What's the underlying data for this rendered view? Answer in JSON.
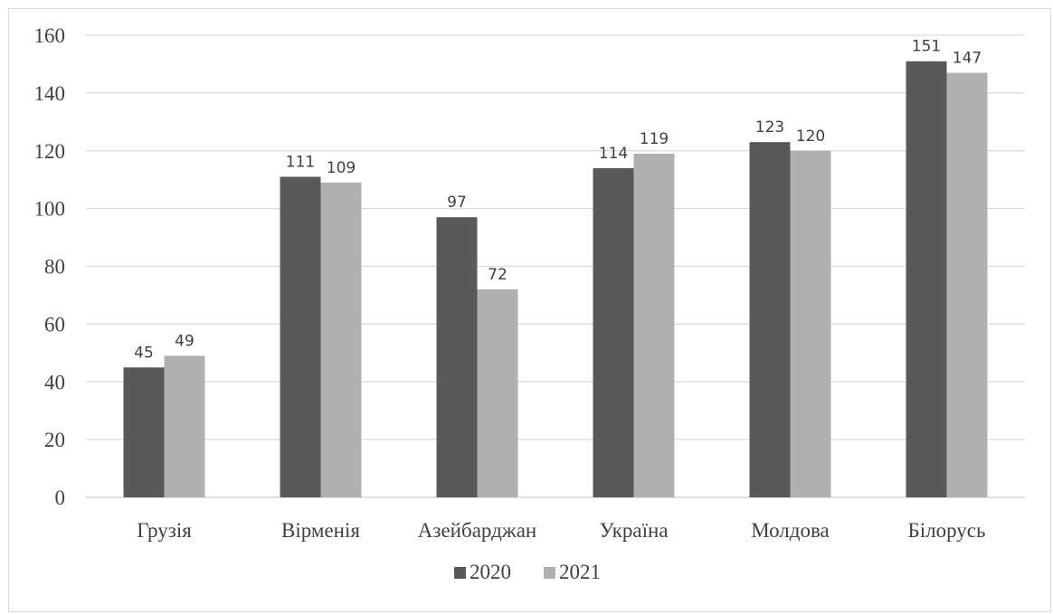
{
  "chart_data": {
    "type": "bar",
    "categories": [
      "Грузія",
      "Вірменія",
      "Азейбарджан",
      "Україна",
      "Молдова",
      "Білорусь"
    ],
    "series": [
      {
        "name": "2020",
        "values": [
          45,
          111,
          97,
          114,
          123,
          151
        ],
        "color": "#595959"
      },
      {
        "name": "2021",
        "values": [
          49,
          109,
          72,
          119,
          120,
          147
        ],
        "color": "#b0b0b0"
      }
    ],
    "title": "",
    "xlabel": "",
    "ylabel": "",
    "ylim": [
      0,
      160
    ],
    "yticks": [
      "0",
      "20",
      "40",
      "60",
      "80",
      "100",
      "120",
      "140",
      "160"
    ],
    "grid": true,
    "legend_position": "bottom",
    "gridline_color": "#d9d9d9",
    "text_color": "#404040"
  }
}
